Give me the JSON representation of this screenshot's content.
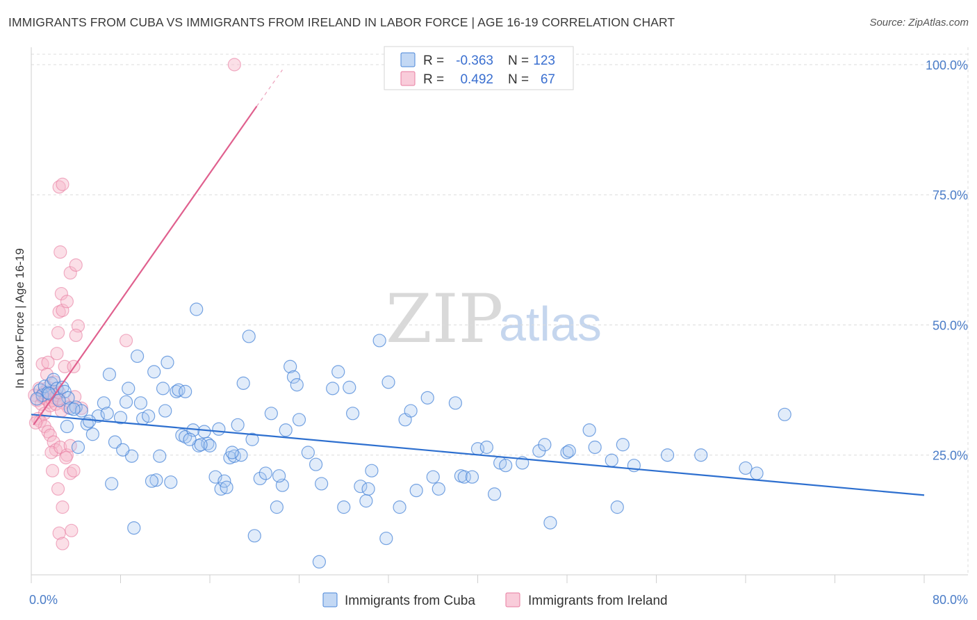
{
  "header": {
    "title": "IMMIGRANTS FROM CUBA VS IMMIGRANTS FROM IRELAND IN LABOR FORCE | AGE 16-19 CORRELATION CHART",
    "source": "Source: ZipAtlas.com"
  },
  "watermark": {
    "zip": "ZIP",
    "atlas": "atlas"
  },
  "legend": {
    "cuba": {
      "r_label": "R =",
      "r_value": "-0.363",
      "n_label": "N =",
      "n_value": "123"
    },
    "ireland": {
      "r_label": "R =",
      "r_value": "0.492",
      "n_label": "N =",
      "n_value": "67"
    }
  },
  "colors": {
    "cuba": "#4a86d8",
    "cuba_fill": "#a9c8f0",
    "cuba_line": "#2d6fcf",
    "ireland": "#e87ca0",
    "ireland_fill": "#f7b7ca",
    "ireland_line": "#e0608e",
    "tick_text": "#4a7cc7"
  },
  "chart_data": {
    "type": "scatter",
    "title": "IMMIGRANTS FROM CUBA VS IMMIGRANTS FROM IRELAND IN LABOR FORCE | AGE 16-19 CORRELATION CHART",
    "xlabel": "",
    "ylabel": "In Labor Force | Age 16-19",
    "xlim": [
      0,
      80
    ],
    "ylim": [
      2,
      102
    ],
    "x_tick_labels": [
      "0.0%",
      "80.0%"
    ],
    "y_ticks": [
      25,
      50,
      75,
      100
    ],
    "y_tick_labels": [
      "25.0%",
      "50.0%",
      "75.0%",
      "100.0%"
    ],
    "grid": true,
    "legend_placement": "top-center",
    "series": [
      {
        "name": "Immigrants from Cuba",
        "r": -0.363,
        "n": 123,
        "trend": {
          "x": [
            0,
            80
          ],
          "y": [
            32.8,
            17.3
          ]
        },
        "points": [
          [
            0.8,
            37.5
          ],
          [
            1.0,
            36.5
          ],
          [
            1.2,
            38.2
          ],
          [
            1.5,
            37.0
          ],
          [
            1.8,
            38.8
          ],
          [
            2.0,
            39.5
          ],
          [
            2.3,
            37.8
          ],
          [
            2.8,
            38.0
          ],
          [
            3.0,
            37.2
          ],
          [
            3.3,
            36.0
          ],
          [
            3.5,
            34.0
          ],
          [
            4.0,
            34.2
          ],
          [
            4.5,
            33.5
          ],
          [
            5.0,
            31.0
          ],
          [
            3.2,
            30.5
          ],
          [
            5.5,
            29.0
          ],
          [
            6.0,
            32.5
          ],
          [
            6.5,
            35.0
          ],
          [
            7.0,
            40.5
          ],
          [
            7.5,
            27.5
          ],
          [
            8.0,
            32.2
          ],
          [
            8.5,
            35.2
          ],
          [
            8.7,
            37.8
          ],
          [
            9.0,
            24.8
          ],
          [
            9.5,
            44.0
          ],
          [
            9.8,
            35.0
          ],
          [
            10.0,
            32.0
          ],
          [
            10.5,
            32.5
          ],
          [
            11.0,
            41.0
          ],
          [
            11.5,
            24.8
          ],
          [
            11.8,
            37.8
          ],
          [
            12.0,
            33.5
          ],
          [
            12.2,
            42.8
          ],
          [
            13.0,
            37.2
          ],
          [
            13.2,
            37.5
          ],
          [
            13.5,
            28.8
          ],
          [
            13.8,
            28.5
          ],
          [
            14.5,
            29.8
          ],
          [
            14.8,
            53.0
          ],
          [
            15.0,
            26.8
          ],
          [
            15.5,
            29.5
          ],
          [
            15.8,
            27.2
          ],
          [
            16.0,
            26.8
          ],
          [
            16.5,
            20.8
          ],
          [
            17.0,
            18.5
          ],
          [
            17.3,
            20.0
          ],
          [
            17.5,
            18.8
          ],
          [
            17.8,
            24.5
          ],
          [
            18.2,
            24.8
          ],
          [
            18.5,
            30.8
          ],
          [
            18.8,
            25.0
          ],
          [
            19.0,
            38.8
          ],
          [
            19.5,
            47.8
          ],
          [
            19.8,
            28.0
          ],
          [
            20.5,
            20.5
          ],
          [
            21.0,
            21.5
          ],
          [
            21.5,
            33.0
          ],
          [
            22.0,
            15.0
          ],
          [
            22.5,
            19.2
          ],
          [
            22.8,
            29.8
          ],
          [
            23.2,
            42.0
          ],
          [
            23.5,
            40.0
          ],
          [
            23.8,
            38.5
          ],
          [
            24.0,
            31.8
          ],
          [
            24.8,
            25.5
          ],
          [
            25.5,
            23.2
          ],
          [
            26.0,
            19.5
          ],
          [
            27.0,
            37.8
          ],
          [
            27.5,
            41.0
          ],
          [
            28.0,
            15.0
          ],
          [
            28.5,
            38.0
          ],
          [
            28.8,
            33.0
          ],
          [
            29.5,
            19.0
          ],
          [
            30.0,
            16.2
          ],
          [
            30.2,
            18.5
          ],
          [
            30.5,
            22.0
          ],
          [
            31.2,
            47.0
          ],
          [
            32.0,
            39.0
          ],
          [
            33.0,
            15.0
          ],
          [
            33.5,
            31.8
          ],
          [
            34.0,
            33.5
          ],
          [
            34.5,
            18.2
          ],
          [
            35.5,
            36.0
          ],
          [
            36.0,
            20.8
          ],
          [
            36.5,
            18.5
          ],
          [
            38.0,
            35.0
          ],
          [
            38.5,
            21.0
          ],
          [
            38.8,
            20.8
          ],
          [
            39.5,
            20.8
          ],
          [
            40.0,
            26.2
          ],
          [
            40.8,
            26.5
          ],
          [
            41.5,
            17.5
          ],
          [
            42.0,
            23.5
          ],
          [
            42.5,
            23.0
          ],
          [
            44.0,
            23.5
          ],
          [
            45.5,
            25.8
          ],
          [
            46.0,
            27.0
          ],
          [
            46.5,
            12.0
          ],
          [
            48.0,
            25.5
          ],
          [
            48.2,
            25.8
          ],
          [
            50.0,
            29.8
          ],
          [
            50.5,
            26.5
          ],
          [
            52.0,
            24.0
          ],
          [
            52.5,
            15.0
          ],
          [
            53.0,
            27.0
          ],
          [
            54.0,
            23.0
          ],
          [
            57.0,
            25.0
          ],
          [
            60.0,
            25.0
          ],
          [
            64.0,
            22.5
          ],
          [
            65.0,
            21.5
          ],
          [
            67.5,
            32.8
          ],
          [
            3.8,
            33.8
          ],
          [
            6.8,
            33.0
          ],
          [
            5.2,
            31.5
          ],
          [
            4.2,
            26.5
          ],
          [
            9.2,
            11.0
          ],
          [
            11.2,
            20.2
          ],
          [
            14.2,
            28.0
          ],
          [
            20.0,
            9.5
          ],
          [
            25.8,
            4.5
          ],
          [
            31.8,
            9.0
          ],
          [
            16.8,
            30.0
          ],
          [
            22.2,
            21.0
          ],
          [
            18.0,
            25.5
          ],
          [
            8.2,
            26.0
          ],
          [
            12.5,
            19.8
          ],
          [
            10.8,
            20.0
          ],
          [
            7.2,
            19.5
          ],
          [
            13.8,
            37.2
          ],
          [
            15.2,
            27.0
          ],
          [
            2.5,
            35.5
          ],
          [
            1.6,
            36.8
          ],
          [
            0.5,
            35.8
          ]
        ]
      },
      {
        "name": "Immigrants from Ireland",
        "r": 0.492,
        "n": 67,
        "trend": {
          "x": [
            0.2,
            20.2
          ],
          "y": [
            30.8,
            92.0
          ],
          "dashed_to": {
            "x": 22.5,
            "y": 99.0
          }
        },
        "points": [
          [
            0.3,
            36.5
          ],
          [
            0.5,
            35.5
          ],
          [
            0.7,
            37.8
          ],
          [
            0.9,
            34.8
          ],
          [
            1.0,
            36.2
          ],
          [
            1.1,
            37.0
          ],
          [
            1.2,
            33.0
          ],
          [
            1.3,
            35.8
          ],
          [
            1.4,
            36.5
          ],
          [
            1.5,
            38.0
          ],
          [
            1.6,
            35.2
          ],
          [
            1.7,
            34.5
          ],
          [
            1.8,
            36.8
          ],
          [
            1.9,
            35.5
          ],
          [
            2.0,
            37.2
          ],
          [
            2.1,
            36.0
          ],
          [
            2.2,
            34.8
          ],
          [
            2.3,
            36.5
          ],
          [
            2.4,
            35.8
          ],
          [
            2.5,
            37.0
          ],
          [
            0.6,
            32.0
          ],
          [
            0.8,
            31.5
          ],
          [
            1.2,
            30.5
          ],
          [
            1.5,
            29.5
          ],
          [
            1.7,
            28.8
          ],
          [
            2.0,
            27.5
          ],
          [
            2.2,
            26.0
          ],
          [
            1.8,
            25.5
          ],
          [
            2.6,
            26.5
          ],
          [
            3.2,
            25.0
          ],
          [
            3.5,
            26.8
          ],
          [
            1.9,
            22.0
          ],
          [
            2.4,
            18.5
          ],
          [
            2.8,
            15.0
          ],
          [
            2.5,
            10.0
          ],
          [
            2.8,
            8.0
          ],
          [
            3.6,
            10.5
          ],
          [
            3.5,
            21.5
          ],
          [
            3.8,
            22.0
          ],
          [
            2.3,
            44.5
          ],
          [
            2.4,
            48.5
          ],
          [
            2.5,
            52.5
          ],
          [
            2.6,
            64.0
          ],
          [
            2.7,
            56.0
          ],
          [
            2.8,
            52.8
          ],
          [
            3.2,
            54.5
          ],
          [
            3.5,
            60.0
          ],
          [
            4.0,
            61.5
          ],
          [
            4.2,
            49.8
          ],
          [
            4.0,
            48.0
          ],
          [
            2.5,
            76.5
          ],
          [
            2.8,
            77.0
          ],
          [
            1.0,
            42.5
          ],
          [
            1.5,
            42.8
          ],
          [
            3.0,
            42.0
          ],
          [
            3.8,
            42.0
          ],
          [
            4.5,
            34.0
          ],
          [
            8.5,
            47.0
          ],
          [
            18.2,
            100.0
          ],
          [
            2.9,
            35.0
          ],
          [
            3.3,
            34.2
          ],
          [
            2.7,
            33.5
          ],
          [
            3.1,
            24.5
          ],
          [
            1.4,
            40.5
          ],
          [
            2.1,
            39.0
          ],
          [
            0.4,
            31.2
          ],
          [
            3.9,
            36.2
          ]
        ]
      }
    ]
  },
  "bottom_legend": {
    "cuba": "Immigrants from Cuba",
    "ireland": "Immigrants from Ireland"
  }
}
